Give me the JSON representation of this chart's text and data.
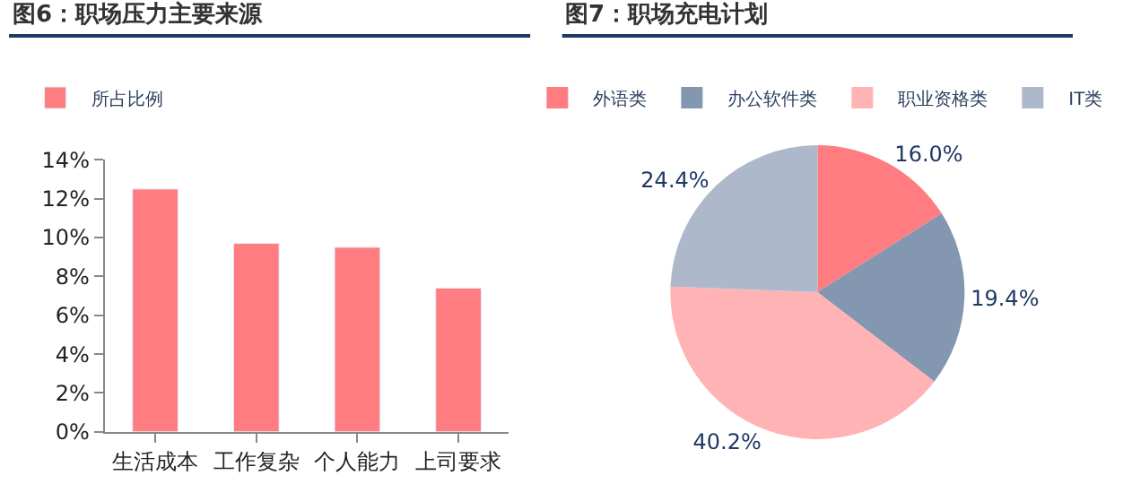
{
  "chart_data": [
    {
      "type": "bar",
      "title": "图6：职场压力主要来源",
      "categories": [
        "生活成本",
        "工作复杂",
        "个人能力",
        "上司要求"
      ],
      "series": [
        {
          "name": "所占比例",
          "color": "#ff7c80",
          "values": [
            12.5,
            9.7,
            9.5,
            7.4
          ]
        }
      ],
      "ylim": [
        0,
        14
      ],
      "yticks": [
        {
          "value": 0,
          "label": "0%"
        },
        {
          "value": 2,
          "label": "2%"
        },
        {
          "value": 4,
          "label": "4%"
        },
        {
          "value": 6,
          "label": "6%"
        },
        {
          "value": 8,
          "label": "8%"
        },
        {
          "value": 10,
          "label": "10%"
        },
        {
          "value": 12,
          "label": "12%"
        },
        {
          "value": 14,
          "label": "14%"
        }
      ],
      "legend": "top left"
    },
    {
      "type": "pie",
      "title": "图7：职场充电计划",
      "categories": [
        "外语类",
        "办公软件类",
        "职业资格类",
        "IT类"
      ],
      "values": [
        16.0,
        19.4,
        40.2,
        24.4
      ],
      "value_labels": [
        "16.0%",
        "19.4%",
        "40.2%",
        "24.4%"
      ],
      "colors": [
        "#ff7c80",
        "#8497b0",
        "#ffb3b5",
        "#adb9ca"
      ],
      "legend": "top"
    }
  ]
}
